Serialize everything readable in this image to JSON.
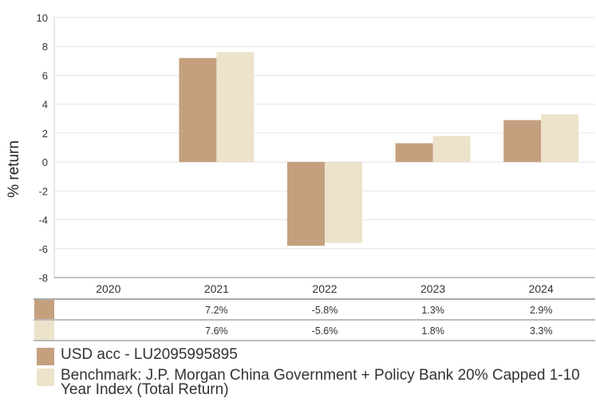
{
  "chart_data": {
    "type": "bar",
    "ylabel": "% return",
    "ylim": [
      -8,
      10
    ],
    "yticks": [
      -8,
      -6,
      -4,
      -2,
      0,
      2,
      4,
      6,
      8,
      10
    ],
    "grid": true,
    "categories": [
      "2020",
      "2021",
      "2022",
      "2023",
      "2024"
    ],
    "series": [
      {
        "name": "USD acc - LU2095995895",
        "color": "#c4a07e",
        "values": [
          null,
          7.2,
          -5.8,
          1.3,
          2.9
        ],
        "labels": [
          "",
          "7.2%",
          "-5.8%",
          "1.3%",
          "2.9%"
        ]
      },
      {
        "name": "Benchmark: J.P. Morgan China Government + Policy Bank 20% Capped 1-10 Year Index (Total Return)",
        "color": "#ede2ca",
        "values": [
          null,
          7.6,
          -5.6,
          1.8,
          3.3
        ],
        "labels": [
          "",
          "7.6%",
          "-5.6%",
          "1.8%",
          "3.3%"
        ]
      }
    ],
    "legend": "bottom"
  }
}
